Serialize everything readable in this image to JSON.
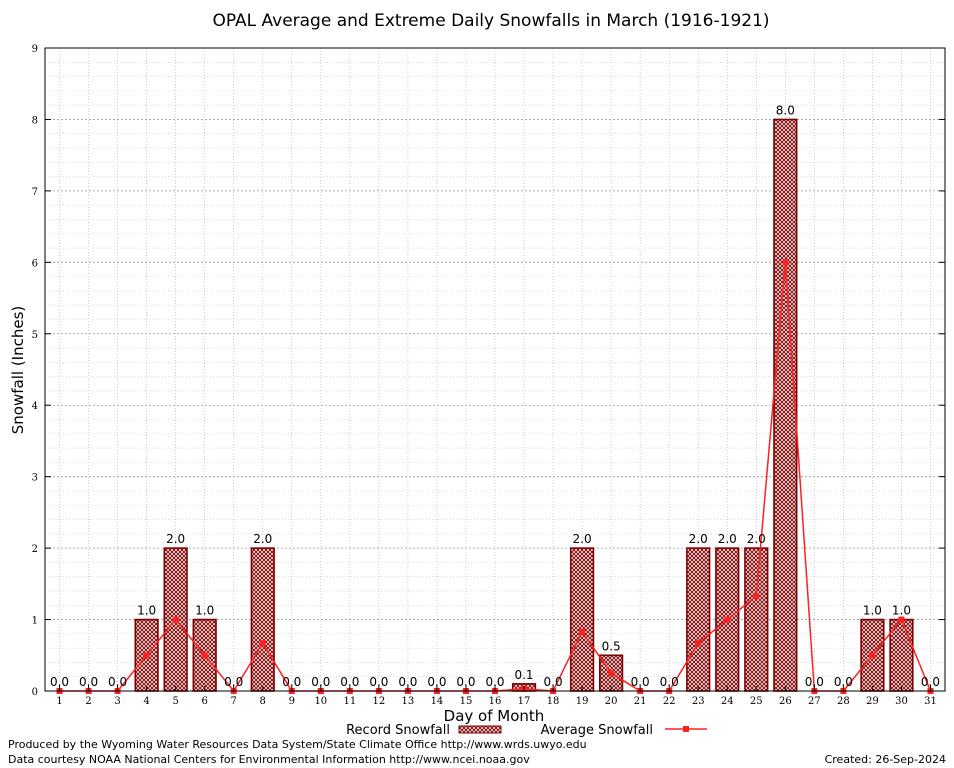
{
  "chart_data": {
    "type": "bar",
    "title": "OPAL Average and Extreme Daily Snowfalls in March (1916-1921)",
    "xlabel": "Day of Month",
    "ylabel": "Snowfall (Inches)",
    "ylim": [
      0,
      9
    ],
    "yticks": [
      "0",
      "1",
      "2",
      "3",
      "4",
      "5",
      "6",
      "7",
      "8",
      "9"
    ],
    "categories": [
      "1",
      "2",
      "3",
      "4",
      "5",
      "6",
      "7",
      "8",
      "9",
      "10",
      "11",
      "12",
      "13",
      "14",
      "15",
      "16",
      "17",
      "18",
      "19",
      "20",
      "21",
      "22",
      "23",
      "24",
      "25",
      "26",
      "27",
      "28",
      "29",
      "30",
      "31"
    ],
    "series": [
      {
        "name": "Record Snowfall",
        "type": "bar",
        "color": "#800000",
        "values": [
          0,
          0,
          0,
          1,
          2,
          1,
          0,
          2,
          0,
          0,
          0,
          0,
          0,
          0,
          0,
          0,
          0.1,
          0,
          2,
          0.5,
          0,
          0,
          2,
          2,
          2,
          8,
          0,
          0,
          1,
          1,
          0
        ],
        "labels": [
          "0.0",
          "0.0",
          "0.0",
          "1.0",
          "2.0",
          "1.0",
          "0.0",
          "2.0",
          "0.0",
          "0.0",
          "0.0",
          "0.0",
          "0.0",
          "0.0",
          "0.0",
          "0.0",
          "0.1",
          "0.0",
          "2.0",
          "0.5",
          "0.0",
          "0.0",
          "2.0",
          "2.0",
          "2.0",
          "8.0",
          "0.0",
          "0.0",
          "1.0",
          "1.0",
          "0.0"
        ]
      },
      {
        "name": "Average Snowfall",
        "type": "line",
        "color": "#ff2020",
        "values": [
          0,
          0,
          0,
          0.5,
          1.0,
          0.5,
          0,
          0.67,
          0,
          0,
          0,
          0,
          0,
          0,
          0,
          0,
          0.03,
          0,
          0.83,
          0.25,
          0,
          0,
          0.67,
          1.0,
          1.33,
          6.0,
          0,
          0,
          0.5,
          1.0,
          0
        ]
      }
    ],
    "grid": true,
    "legend": "bottom"
  },
  "footer": {
    "left_line1": "Produced by the Wyoming Water Resources Data System/State Climate Office http://www.wrds.uwyo.edu",
    "left_line2": "Data courtesy NOAA National Centers for Environmental Information http://www.ncei.noaa.gov",
    "right": "Created:  26-Sep-2024"
  }
}
